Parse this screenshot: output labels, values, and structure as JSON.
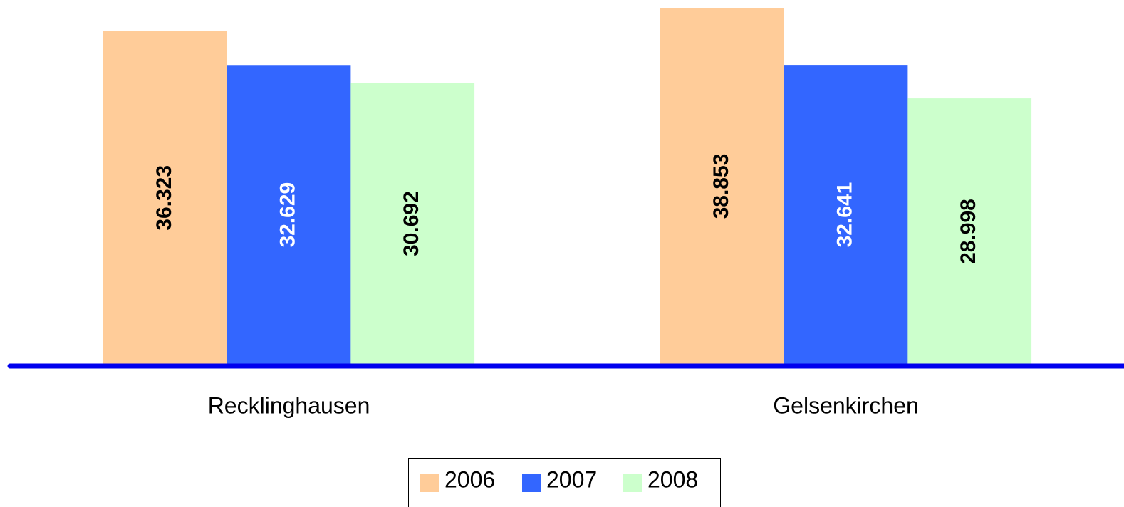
{
  "chart_data": {
    "type": "bar",
    "categories": [
      "Recklinghausen",
      "Gelsenkirchen"
    ],
    "series": [
      {
        "name": "2006",
        "color": "#ffcc99",
        "label_color": "#000000",
        "values": [
          36.323,
          38.853
        ]
      },
      {
        "name": "2007",
        "color": "#3366ff",
        "label_color": "#ffffff",
        "values": [
          32.629,
          32.641
        ]
      },
      {
        "name": "2008",
        "color": "#ccffcc",
        "label_color": "#000000",
        "values": [
          30.692,
          28.998
        ]
      }
    ],
    "axis_color": "#0000ee",
    "legend": "bottom"
  }
}
